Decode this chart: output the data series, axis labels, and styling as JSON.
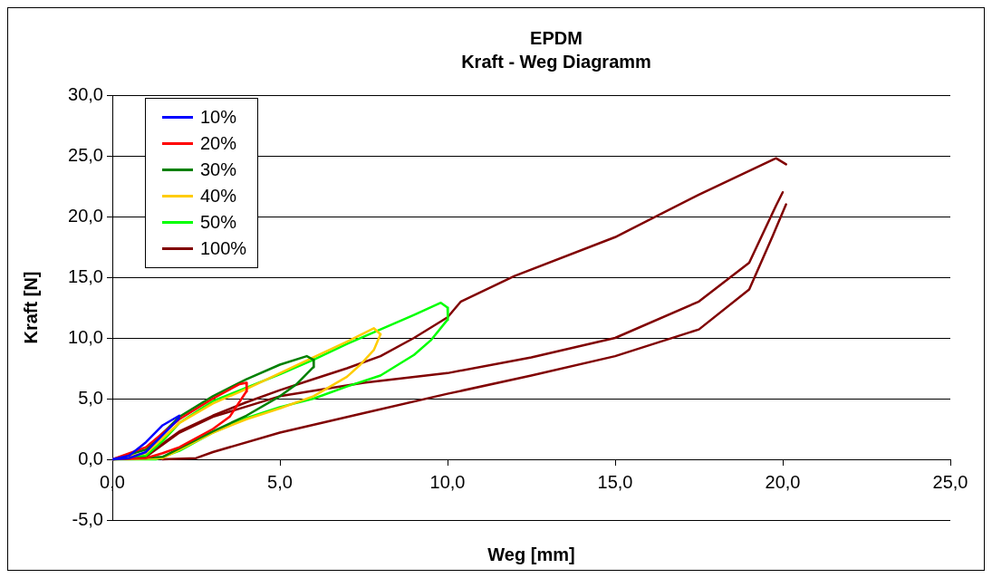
{
  "chart_data": {
    "type": "line",
    "title": "EPDM",
    "subtitle": "Kraft - Weg Diagramm",
    "xlabel": "Weg [mm]",
    "ylabel": "Kraft [N]",
    "xlim": [
      0,
      25
    ],
    "xticks": [
      {
        "value": 0,
        "label": "0,0"
      },
      {
        "value": 5,
        "label": "5,0"
      },
      {
        "value": 10,
        "label": "10,0"
      },
      {
        "value": 15,
        "label": "15,0"
      },
      {
        "value": 20,
        "label": "20,0"
      },
      {
        "value": 25,
        "label": "25,0"
      }
    ],
    "ylim": [
      -5,
      30
    ],
    "yticks": [
      {
        "value": -5,
        "label": "-5,0"
      },
      {
        "value": 0,
        "label": "0,0"
      },
      {
        "value": 5,
        "label": "5,0"
      },
      {
        "value": 10,
        "label": "10,0"
      },
      {
        "value": 15,
        "label": "15,0"
      },
      {
        "value": 20,
        "label": "20,0"
      },
      {
        "value": 25,
        "label": "25,0"
      },
      {
        "value": 30,
        "label": "30,0"
      }
    ],
    "grid": "y",
    "legend": "top left",
    "marker": "none",
    "line_style": "solid",
    "series": [
      {
        "name": "10%",
        "color": "#0000ff",
        "x": [
          0,
          0.5,
          1,
          1.5,
          2
        ],
        "values": [
          0,
          0.3,
          1.4,
          2.8,
          3.6
        ]
      },
      {
        "color": "#0000ff",
        "x": [
          0,
          0.5,
          1,
          1.5,
          2
        ],
        "values": [
          0,
          0.1,
          0.6,
          2.0,
          3.4
        ]
      },
      {
        "name": "20%",
        "color": "#ff0000",
        "x": [
          0,
          1,
          2,
          3,
          3.8,
          4,
          4.01
        ],
        "values": [
          0,
          1.0,
          3.3,
          5.0,
          6.2,
          6.3,
          5.6
        ]
      },
      {
        "color": "#ff0000",
        "x": [
          0,
          1,
          1.5,
          2,
          3,
          3.5,
          4
        ],
        "values": [
          0,
          0.1,
          0.5,
          1.0,
          2.5,
          3.5,
          5.6
        ]
      },
      {
        "name": "30%",
        "color": "#008000",
        "x": [
          0,
          1,
          2,
          3,
          4,
          5,
          5.8,
          6,
          6.01
        ],
        "values": [
          0,
          0.8,
          3.5,
          5.2,
          6.6,
          7.8,
          8.5,
          8.2,
          7.6
        ]
      },
      {
        "color": "#008000",
        "x": [
          0,
          1.5,
          2,
          3,
          4,
          5,
          5.5,
          6
        ],
        "values": [
          0,
          0.2,
          0.9,
          2.3,
          3.6,
          5.2,
          6.2,
          7.6
        ]
      },
      {
        "name": "40%",
        "color": "#ffcc00",
        "x": [
          0,
          1,
          2,
          3,
          4,
          5,
          6,
          7,
          7.8,
          8
        ],
        "values": [
          0,
          0.5,
          3.0,
          4.6,
          5.8,
          7.1,
          8.4,
          9.7,
          10.8,
          10.3
        ]
      },
      {
        "color": "#ffcc00",
        "x": [
          0,
          1.5,
          2,
          3,
          4,
          5,
          6,
          7,
          7.4,
          7.8,
          8
        ],
        "values": [
          0,
          0.1,
          0.8,
          2.2,
          3.3,
          4.2,
          5.2,
          6.8,
          7.8,
          9.0,
          10.3
        ]
      },
      {
        "name": "50%",
        "color": "#00ff00",
        "x": [
          0,
          1,
          1.5,
          2,
          3,
          4,
          5,
          6,
          7,
          8,
          9,
          9.8,
          10,
          10.01
        ],
        "values": [
          0,
          0.3,
          1.5,
          3.0,
          4.8,
          5.9,
          7.0,
          8.2,
          9.5,
          10.7,
          11.9,
          12.9,
          12.5,
          11.5
        ]
      },
      {
        "color": "#00ff00",
        "x": [
          0,
          1.3,
          2,
          3,
          4,
          5,
          6,
          7,
          8,
          9,
          9.5,
          10
        ],
        "values": [
          0,
          0,
          0.7,
          2.2,
          3.4,
          4.3,
          5.0,
          6.0,
          6.9,
          8.6,
          9.8,
          11.5
        ]
      },
      {
        "name": "100%",
        "color": "#800000",
        "x": [
          0,
          1,
          2,
          3,
          4,
          5,
          6,
          7,
          8,
          9,
          10,
          10.4,
          12,
          15,
          17.5,
          19.8,
          20.1
        ],
        "values": [
          0,
          0.3,
          2.3,
          3.6,
          4.7,
          5.7,
          6.6,
          7.5,
          8.5,
          10.0,
          11.7,
          13.0,
          15.1,
          18.3,
          21.8,
          24.8,
          24.3
        ]
      },
      {
        "color": "#800000",
        "x": [
          1.5,
          2.5,
          3,
          5,
          7.5,
          10,
          12.5,
          15,
          17.5,
          19,
          19.7,
          20.1
        ],
        "values": [
          0,
          0.1,
          0.6,
          2.2,
          3.8,
          5.4,
          6.9,
          8.5,
          10.7,
          14.0,
          18.4,
          21.0
        ]
      },
      {
        "color": "#800000",
        "x": [
          1,
          2,
          3,
          5,
          7.5,
          10,
          12.5,
          15,
          17.5,
          19,
          19.8,
          20
        ],
        "values": [
          0.2,
          2.2,
          3.5,
          5.2,
          6.3,
          7.1,
          8.4,
          10.0,
          13.0,
          16.2,
          20.9,
          22.0
        ]
      }
    ]
  }
}
